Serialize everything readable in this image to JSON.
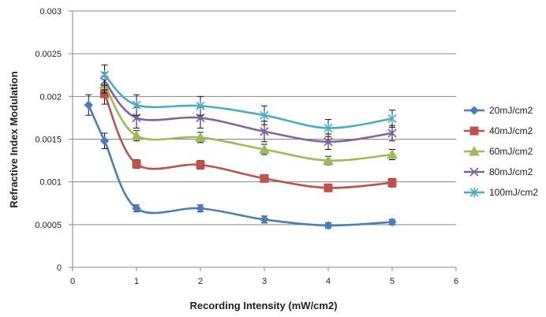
{
  "chart_data": {
    "type": "line",
    "title": "",
    "xlabel": "Recording Intensity (mW/cm2)",
    "ylabel": "Refractive Index Modulation",
    "xlim": [
      0,
      6
    ],
    "ylim": [
      0,
      0.003
    ],
    "xticks": [
      "0",
      "1",
      "2",
      "3",
      "4",
      "5",
      "6"
    ],
    "yticks": [
      "0",
      "0.0005",
      "0.001",
      "0.0015",
      "0.002",
      "0.0025",
      "0.003"
    ],
    "grid": "horizontal",
    "legend_position": "right",
    "smooth": true,
    "series": [
      {
        "name": "20mJ/cm2",
        "color": "#4a7ebb",
        "marker": "diamond",
        "x": [
          0.25,
          0.5,
          1,
          2,
          3,
          4,
          5
        ],
        "y": [
          0.0019,
          0.00148,
          0.00069,
          0.00069,
          0.00056,
          0.00049,
          0.00053
        ],
        "err": [
          0.00012,
          9e-05,
          4e-05,
          4e-05,
          4e-05,
          3e-05,
          3e-05
        ]
      },
      {
        "name": "40mJ/cm2",
        "color": "#c0504d",
        "marker": "square",
        "x": [
          0.5,
          1,
          2,
          3,
          4,
          5
        ],
        "y": [
          0.00203,
          0.00121,
          0.0012,
          0.00104,
          0.00093,
          0.00099
        ],
        "err": [
          0.00012,
          5e-05,
          5e-05,
          4e-05,
          4e-05,
          5e-05
        ]
      },
      {
        "name": "60mJ/cm2",
        "color": "#9bbb59",
        "marker": "triangle",
        "x": [
          0.5,
          1,
          2,
          3,
          4,
          5
        ],
        "y": [
          0.00214,
          0.00154,
          0.00152,
          0.00138,
          0.00125,
          0.00132
        ],
        "err": [
          0.0001,
          6e-05,
          6e-05,
          6e-05,
          5e-05,
          6e-05
        ]
      },
      {
        "name": "80mJ/cm2",
        "color": "#8064a2",
        "marker": "x",
        "x": [
          0.5,
          1,
          2,
          3,
          4,
          5
        ],
        "y": [
          0.00218,
          0.00175,
          0.00175,
          0.00159,
          0.00147,
          0.00157
        ],
        "err": [
          0.0001,
          0.00012,
          0.00012,
          0.00012,
          9e-05,
          9e-05
        ]
      },
      {
        "name": "100mJ/cm2",
        "color": "#4bacc6",
        "marker": "star",
        "x": [
          0.5,
          1,
          2,
          3,
          4,
          5
        ],
        "y": [
          0.00225,
          0.0019,
          0.00189,
          0.00178,
          0.00163,
          0.00174
        ],
        "err": [
          0.00012,
          0.00012,
          0.00011,
          0.00011,
          0.0001,
          0.0001
        ]
      }
    ]
  }
}
